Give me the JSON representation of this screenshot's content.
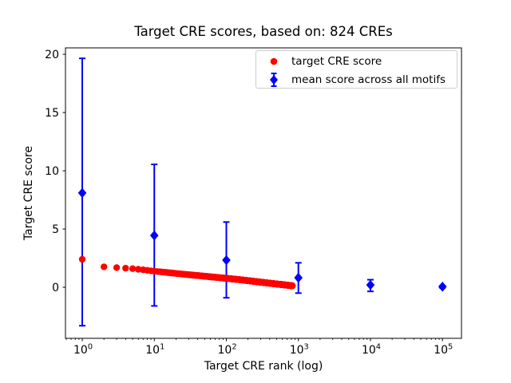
{
  "figure": {
    "title": "Target CRE scores, based on: 824 CREs",
    "xlabel": "Target CRE rank (log)",
    "ylabel": "Target CRE score"
  },
  "legend": {
    "position": "upper right",
    "items": [
      {
        "label": "target CRE score",
        "marker": "circle",
        "color": "#ff0000"
      },
      {
        "label": "mean score across all motifs",
        "marker": "diamond-errorbar",
        "color": "#0000ff"
      }
    ]
  },
  "colors": {
    "target_series": "#ff0000",
    "mean_series": "#0000ff",
    "axes": "#000000",
    "legend_border": "#cccccc",
    "background": "#ffffff"
  },
  "chart_data": {
    "type": "scatter",
    "title": "Target CRE scores, based on: 824 CREs",
    "xlabel": "Target CRE rank (log)",
    "ylabel": "Target CRE score",
    "x_scale": "log",
    "grid": false,
    "xlim_log10": [
      -0.233,
      5.264
    ],
    "ylim": [
      -4.38,
      20.55
    ],
    "x_major_ticks": [
      1,
      10,
      100,
      1000,
      10000,
      100000
    ],
    "x_tick_base": "10",
    "x_tick_exponents": [
      0,
      1,
      2,
      3,
      4,
      5
    ],
    "y_ticks": [
      0,
      5,
      10,
      15,
      20
    ],
    "series": [
      {
        "name": "target CRE score",
        "color": "#ff0000",
        "marker": "circle",
        "n_points": 824,
        "anchors": {
          "rank": [
            1,
            2,
            3,
            4,
            5,
            7,
            10,
            15,
            20,
            30,
            50,
            70,
            100,
            150,
            200,
            300,
            400,
            500,
            600,
            700,
            824
          ],
          "score": [
            2.4,
            1.76,
            1.69,
            1.64,
            1.6,
            1.5,
            1.38,
            1.27,
            1.19,
            1.08,
            0.95,
            0.86,
            0.77,
            0.66,
            0.57,
            0.44,
            0.35,
            0.28,
            0.23,
            0.18,
            0.13
          ]
        }
      },
      {
        "name": "mean score across all motifs",
        "color": "#0000ff",
        "marker": "diamond",
        "x": [
          1,
          10,
          100,
          1000,
          10000,
          100000
        ],
        "y": [
          8.1,
          4.45,
          2.33,
          0.82,
          0.2,
          0.05
        ],
        "err_high": [
          19.65,
          10.55,
          5.6,
          2.1,
          0.65,
          0.15
        ],
        "err_low": [
          -3.3,
          -1.6,
          -0.9,
          -0.5,
          -0.35,
          -0.05
        ]
      }
    ]
  }
}
